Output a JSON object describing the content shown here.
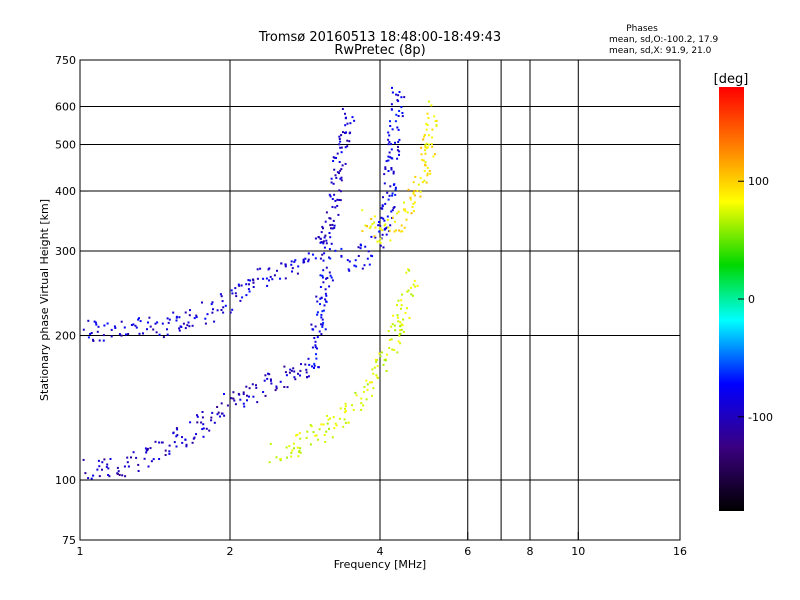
{
  "chart_data": {
    "type": "scatter",
    "title": "Tromsø 20160513 18:48:00-18:49:43",
    "subtitle": "RwPretec (8p)",
    "xlabel": "Frequency [MHz]",
    "ylabel": "Stationary phase Virtual Height [km]",
    "xscale": "log",
    "yscale": "log",
    "xlim": [
      1,
      16
    ],
    "ylim": [
      75,
      750
    ],
    "xticks": [
      1,
      2,
      4,
      6,
      8,
      10,
      16
    ],
    "xtick_labels": [
      "1",
      "2",
      "4",
      "6",
      "8",
      "10",
      "16"
    ],
    "xgrid": [
      2,
      4,
      6,
      7,
      8,
      10
    ],
    "yticks": [
      75,
      100,
      200,
      300,
      400,
      500,
      600,
      750
    ],
    "ytick_labels": [
      "75",
      "100",
      "200",
      "300",
      "400",
      "500",
      "600",
      "750"
    ],
    "ygrid": [
      100,
      200,
      300,
      400,
      500,
      600
    ],
    "grid": true,
    "stats": {
      "title": "Phases",
      "line_o": "mean, sd,O:-100.2, 17.9",
      "line_x": "mean, sd,X:  91.9, 21.0"
    },
    "colorbar": {
      "label": "[deg]",
      "range": [
        -180,
        180
      ],
      "ticks": [
        100,
        0,
        -100
      ],
      "tick_labels": [
        "100",
        "0",
        "-100"
      ],
      "position": "right"
    },
    "traces": [
      {
        "name_hint": "O-mode F-layer lower",
        "color_phase": -115,
        "points": [
          [
            1.02,
            205
          ],
          [
            1.2,
            207
          ],
          [
            1.4,
            208
          ],
          [
            1.6,
            214
          ],
          [
            1.75,
            222
          ],
          [
            1.85,
            228
          ],
          [
            2.0,
            240
          ],
          [
            2.2,
            255
          ],
          [
            2.4,
            268
          ],
          [
            2.6,
            280
          ],
          [
            2.8,
            292
          ],
          [
            3.0,
            300
          ],
          [
            3.2,
            306
          ]
        ]
      },
      {
        "name_hint": "O-mode F-layer cusp",
        "color_phase": -120,
        "points": [
          [
            3.0,
            300
          ],
          [
            3.1,
            330
          ],
          [
            3.2,
            370
          ],
          [
            3.25,
            410
          ],
          [
            3.3,
            460
          ],
          [
            3.35,
            500
          ],
          [
            3.4,
            540
          ],
          [
            3.45,
            580
          ]
        ]
      },
      {
        "name_hint": "O-mode F2",
        "color_phase": -110,
        "points": [
          [
            3.3,
            290
          ],
          [
            3.5,
            288
          ],
          [
            3.7,
            295
          ],
          [
            3.9,
            310
          ],
          [
            4.05,
            340
          ],
          [
            4.15,
            390
          ],
          [
            4.22,
            460
          ],
          [
            4.28,
            540
          ],
          [
            4.32,
            610
          ],
          [
            4.35,
            640
          ]
        ]
      },
      {
        "name_hint": "X-mode F2",
        "color_phase": 95,
        "points": [
          [
            3.7,
            360
          ],
          [
            3.85,
            335
          ],
          [
            4.0,
            325
          ],
          [
            4.2,
            330
          ],
          [
            4.45,
            350
          ],
          [
            4.7,
            390
          ],
          [
            4.9,
            450
          ],
          [
            5.0,
            520
          ],
          [
            5.05,
            590
          ]
        ]
      },
      {
        "name_hint": "O-mode E/F1 lower",
        "color_phase": -125,
        "points": [
          [
            1.0,
            105
          ],
          [
            1.15,
            106
          ],
          [
            1.3,
            110
          ],
          [
            1.5,
            118
          ],
          [
            1.7,
            128
          ],
          [
            1.9,
            140
          ],
          [
            2.1,
            150
          ],
          [
            2.3,
            158
          ],
          [
            2.5,
            163
          ],
          [
            2.7,
            167
          ],
          [
            2.9,
            172
          ]
        ]
      },
      {
        "name_hint": "O-mode F1 vertical",
        "color_phase": -110,
        "points": [
          [
            2.9,
            172
          ],
          [
            2.95,
            190
          ],
          [
            3.0,
            215
          ],
          [
            3.05,
            240
          ],
          [
            3.1,
            260
          ],
          [
            3.15,
            280
          ]
        ]
      },
      {
        "name_hint": "X-mode lower",
        "color_phase": 75,
        "points": [
          [
            2.4,
            112
          ],
          [
            2.7,
            118
          ],
          [
            3.0,
            125
          ],
          [
            3.3,
            135
          ],
          [
            3.6,
            150
          ],
          [
            3.9,
            165
          ],
          [
            4.1,
            180
          ],
          [
            4.3,
            205
          ],
          [
            4.5,
            240
          ],
          [
            4.6,
            265
          ]
        ]
      }
    ]
  }
}
